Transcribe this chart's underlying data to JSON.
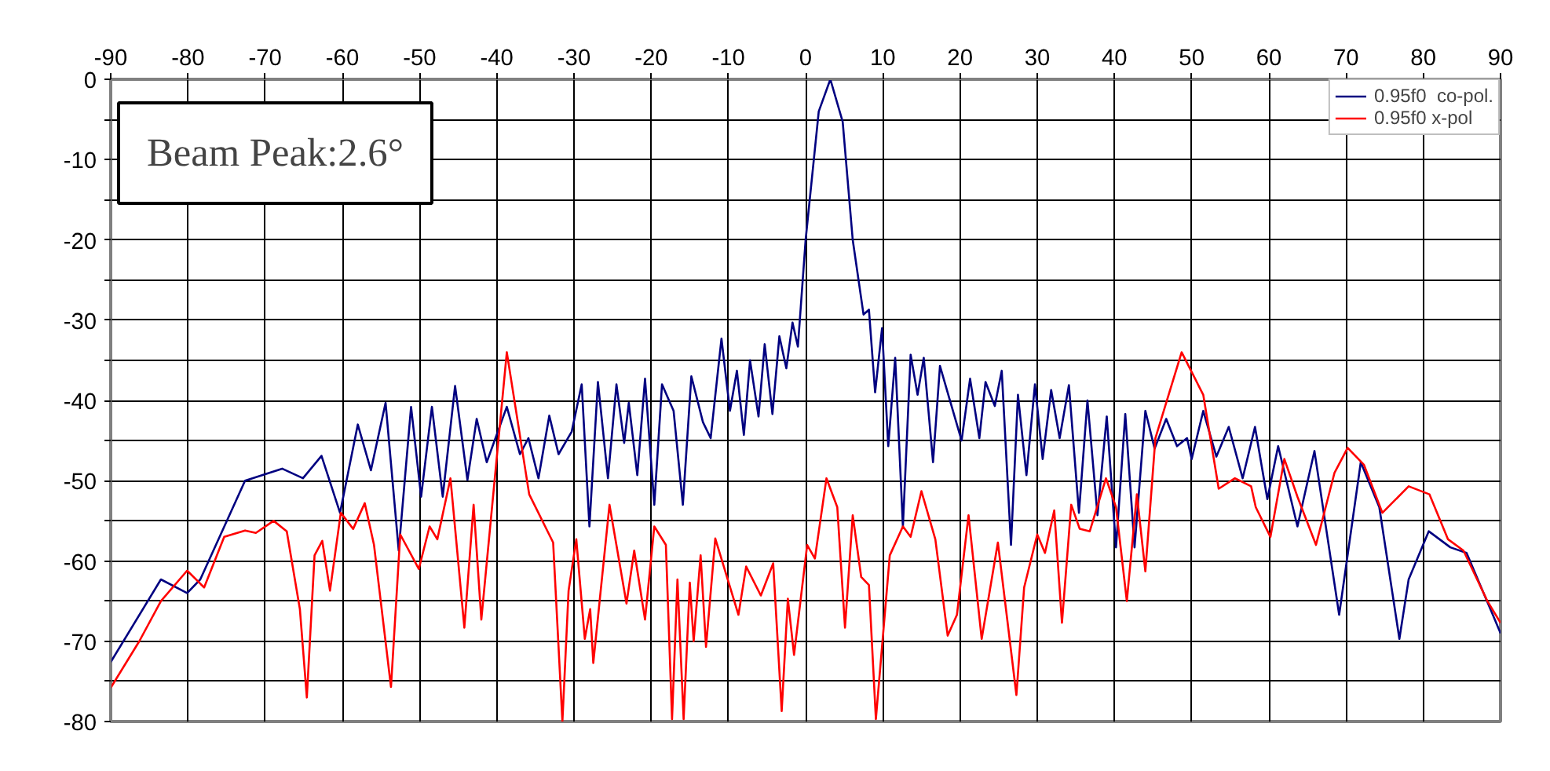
{
  "chart_data": {
    "type": "line",
    "xlim": [
      -90,
      90
    ],
    "ylim": [
      -80,
      0
    ],
    "xticks": [
      -90,
      -80,
      -70,
      -60,
      -50,
      -40,
      -30,
      -20,
      -10,
      0,
      10,
      20,
      30,
      40,
      50,
      60,
      70,
      80,
      90
    ],
    "yticks": [
      0,
      {
        "value": -5,
        "label": null
      },
      -10,
      {
        "value": -15,
        "label": null
      },
      -20,
      {
        "value": -25,
        "label": null
      },
      -30,
      {
        "value": -35,
        "label": null
      },
      -40,
      {
        "value": -45,
        "label": null
      },
      -50,
      {
        "value": -55,
        "label": null
      },
      -60,
      {
        "value": -65,
        "label": null
      },
      -70,
      {
        "value": -75,
        "label": null
      },
      -80
    ],
    "grid": true,
    "legend": "top right",
    "line_style": "solid",
    "marker": "none",
    "annotations": [
      "Beam Peak:2.6°"
    ],
    "series": [
      {
        "name": "0.95f0  co-pol.",
        "color": "#000080",
        "x": [
          -90,
          -83.5,
          -80.1,
          -78.4,
          -72.6,
          -67.8,
          -65.1,
          -62.7,
          -60.3,
          -58,
          -56.3,
          -54.4,
          -52.7,
          -51.1,
          -49.8,
          -48.4,
          -47,
          -45.4,
          -43.8,
          -42.6,
          -41.3,
          -38.7,
          -37,
          -35.9,
          -34.6,
          -33.2,
          -32,
          -30.3,
          -29,
          -28,
          -26.9,
          -25.6,
          -24.5,
          -23.5,
          -22.9,
          -21.8,
          -20.8,
          -19.6,
          -18.6,
          -17.1,
          -15.9,
          -14.8,
          -13.3,
          -12.3,
          -10.9,
          -9.8,
          -8.9,
          -8,
          -7.2,
          -6.1,
          -5.3,
          -4.3,
          -3.4,
          -2.5,
          -1.7,
          -1,
          0,
          1.7,
          3.2,
          4.8,
          6.1,
          7.5,
          8.2,
          9,
          9.9,
          10.7,
          11.6,
          12.6,
          13.6,
          14.5,
          15.3,
          16.5,
          17.4,
          18.9,
          20.2,
          21.3,
          22.5,
          23.3,
          24.5,
          25.4,
          26.6,
          27.5,
          28.6,
          29.7,
          30.7,
          31.8,
          32.9,
          34.1,
          35.4,
          36.5,
          37.8,
          39,
          40.2,
          41.4,
          42.6,
          44,
          45.2,
          46.7,
          48.1,
          49.4,
          50,
          51.5,
          53.2,
          54.8,
          56.6,
          58.2,
          59.8,
          61.2,
          63.7,
          65.9,
          69.1,
          71.9,
          74.3,
          76.9,
          78.1,
          80.7,
          83.5,
          85.6,
          89,
          90
        ],
        "values": [
          -72.6,
          -62.3,
          -64,
          -62.3,
          -50,
          -48.5,
          -49.7,
          -46.9,
          -54,
          -43,
          -48.7,
          -40.3,
          -58.7,
          -40.8,
          -52,
          -40.8,
          -52,
          -38.2,
          -49.9,
          -42.3,
          -47.7,
          -40.8,
          -46.7,
          -44.7,
          -49.7,
          -41.9,
          -46.7,
          -43.9,
          -38,
          -55.7,
          -37.7,
          -49.7,
          -38,
          -45.3,
          -40.3,
          -49.3,
          -37.3,
          -53,
          -38,
          -41.3,
          -53,
          -37,
          -42.7,
          -44.7,
          -32.3,
          -41.3,
          -36.3,
          -44.3,
          -35,
          -42,
          -33,
          -41.7,
          -32,
          -36,
          -30.3,
          -33.3,
          -20,
          -4,
          0,
          -5.3,
          -20,
          -29.3,
          -28.7,
          -39,
          -31,
          -45.7,
          -34.7,
          -55.7,
          -34.3,
          -39.3,
          -34.7,
          -47.7,
          -35.7,
          -40.7,
          -45,
          -37.3,
          -44.7,
          -37.7,
          -40.7,
          -36.3,
          -58,
          -39.3,
          -49.3,
          -38,
          -47.3,
          -38.7,
          -44.7,
          -38.1,
          -54,
          -40,
          -54.3,
          -42,
          -58.3,
          -41.7,
          -58.3,
          -41.3,
          -46,
          -42.3,
          -45.7,
          -44.7,
          -47.3,
          -41.3,
          -47,
          -43.3,
          -49.7,
          -43.3,
          -52.3,
          -45.7,
          -55.7,
          -46.3,
          -66.7,
          -47.7,
          -53.3,
          -69.7,
          -62.3,
          -56.3,
          -58.3,
          -59,
          -66.7,
          -69
        ]
      },
      {
        "name": "0.95f0 x-pol",
        "color": "#ff0000",
        "x": [
          -90,
          -86.3,
          -83.5,
          -80.1,
          -77.9,
          -75.3,
          -72.6,
          -71.2,
          -68.9,
          -67.2,
          -65.5,
          -64.6,
          -63.6,
          -62.6,
          -61.6,
          -60.2,
          -58.6,
          -57.1,
          -55.9,
          -53.7,
          -52.5,
          -50.1,
          -48.7,
          -47.7,
          -46,
          -44.2,
          -43,
          -42,
          -38.7,
          -35.8,
          -32.7,
          -31.5,
          -30.7,
          -29.7,
          -28.6,
          -27.9,
          -27.5,
          -25.4,
          -23.2,
          -22.2,
          -20.8,
          -19.6,
          -18.1,
          -17.3,
          -16.6,
          -15.8,
          -15,
          -14.5,
          -13.6,
          -12.9,
          -11.7,
          -8.7,
          -7.7,
          -5.8,
          -4.2,
          -3.1,
          -2.3,
          -1.5,
          0.2,
          1.2,
          2.7,
          4.1,
          5.1,
          6.1,
          7.2,
          8.2,
          9.1,
          10.9,
          12.6,
          13.6,
          15,
          16.8,
          18.4,
          19.6,
          21.1,
          22.8,
          24.9,
          27.3,
          28.3,
          30,
          31,
          32.2,
          33.2,
          34.4,
          35.5,
          36.8,
          38.9,
          40.2,
          41.6,
          42.9,
          44,
          45.3,
          48.7,
          51.5,
          53.5,
          55.6,
          57.7,
          58.3,
          60.2,
          62,
          63.7,
          66.1,
          68.5,
          70.2,
          72.3,
          74.7,
          78.1,
          80.8,
          83.2,
          85.2,
          88.3,
          90
        ],
        "values": [
          -75.8,
          -70,
          -65,
          -61.2,
          -63.3,
          -57,
          -56.2,
          -56.5,
          -55,
          -56.3,
          -66,
          -77,
          -59.3,
          -57.5,
          -63.7,
          -54,
          -56,
          -52.8,
          -58,
          -75.7,
          -56.7,
          -61,
          -55.7,
          -57.3,
          -49.7,
          -68.3,
          -53,
          -67.3,
          -34,
          -51.7,
          -57.7,
          -80,
          -63.7,
          -57.3,
          -69.7,
          -66,
          -72.7,
          -53,
          -65.3,
          -58.7,
          -67.3,
          -55.7,
          -58,
          -79.7,
          -62.3,
          -79.7,
          -62.7,
          -70,
          -59.3,
          -70.7,
          -57.2,
          -66.7,
          -60.7,
          -64.3,
          -60.3,
          -78.7,
          -64.7,
          -71.7,
          -58,
          -59.7,
          -49.7,
          -53.3,
          -68.3,
          -54.3,
          -62,
          -63,
          -79.7,
          -59.3,
          -55.7,
          -57,
          -51.3,
          -57.3,
          -69.3,
          -66.7,
          -54.3,
          -69.7,
          -57.7,
          -76.7,
          -63.3,
          -56.7,
          -59,
          -53.7,
          -67.7,
          -53,
          -56,
          -56.3,
          -49.7,
          -53.3,
          -65,
          -51.7,
          -61.3,
          -44.7,
          -34,
          -39.3,
          -51,
          -49.7,
          -50.7,
          -53.3,
          -57,
          -47.3,
          -52,
          -58,
          -49,
          -45.9,
          -48,
          -54,
          -50.7,
          -51.7,
          -57.3,
          -58.7,
          -65,
          -67.7
        ]
      }
    ]
  }
}
